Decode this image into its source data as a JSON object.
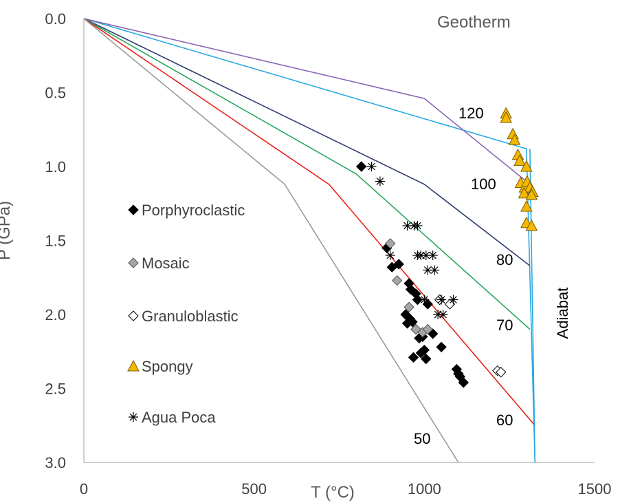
{
  "chart_data": {
    "type": "scatter",
    "title": "Geotherm",
    "xlabel": "T (°C)",
    "ylabel": "P (GPa)",
    "xlim": [
      0,
      1500
    ],
    "ylim": [
      0,
      3.0
    ],
    "y_inverted": true,
    "x_ticks": [
      "0",
      "500",
      "1000",
      "1500"
    ],
    "y_ticks": [
      "0.0",
      "0.5",
      "1.0",
      "1.5",
      "2.0",
      "2.5",
      "3.0"
    ],
    "grid": false,
    "legend_position": "left",
    "lines": [
      {
        "label": "120",
        "color": "#29a9e0",
        "points": [
          [
            0,
            0
          ],
          [
            1300,
            0.88
          ],
          [
            1325,
            3.0
          ]
        ]
      },
      {
        "label": "100",
        "color": "#8a64b4",
        "points": [
          [
            0,
            0
          ],
          [
            1000,
            0.54
          ],
          [
            1310,
            1.12
          ]
        ]
      },
      {
        "label": "80",
        "color": "#2e3f6e",
        "points": [
          [
            0,
            0
          ],
          [
            1000,
            1.12
          ],
          [
            1310,
            1.67
          ]
        ]
      },
      {
        "label": "70",
        "color": "#27a85e",
        "points": [
          [
            0,
            0
          ],
          [
            800,
            1.05
          ],
          [
            1310,
            2.1
          ]
        ]
      },
      {
        "label": "60",
        "color": "#e8231b",
        "points": [
          [
            0,
            0
          ],
          [
            720,
            1.12
          ],
          [
            1325,
            2.75
          ]
        ]
      },
      {
        "label": "50",
        "color": "#9a9a9a",
        "points": [
          [
            0,
            0
          ],
          [
            590,
            1.12
          ],
          [
            1100,
            3.0
          ]
        ]
      },
      {
        "label": "Adiabat",
        "color": "#29a9e0",
        "points": [
          [
            1310,
            0.88
          ],
          [
            1325,
            3.0
          ]
        ]
      }
    ],
    "series": [
      {
        "name": "Porphyroclastic",
        "marker": "diamond",
        "fill": "#000000",
        "stroke": "#000000",
        "points": [
          [
            815,
            1.0
          ],
          [
            890,
            1.55
          ],
          [
            905,
            1.68
          ],
          [
            925,
            1.66
          ],
          [
            955,
            1.79
          ],
          [
            960,
            1.83
          ],
          [
            975,
            1.86
          ],
          [
            980,
            1.9
          ],
          [
            945,
            2.0
          ],
          [
            950,
            2.06
          ],
          [
            958,
            2.03
          ],
          [
            965,
            2.05
          ],
          [
            975,
            2.1
          ],
          [
            985,
            2.16
          ],
          [
            995,
            2.15
          ],
          [
            1010,
            1.93
          ],
          [
            1025,
            2.13
          ],
          [
            1050,
            2.22
          ],
          [
            968,
            2.29
          ],
          [
            990,
            2.26
          ],
          [
            1000,
            2.24
          ],
          [
            1005,
            2.3
          ],
          [
            1095,
            2.37
          ],
          [
            1100,
            2.4
          ],
          [
            1105,
            2.42
          ],
          [
            1115,
            2.46
          ]
        ]
      },
      {
        "name": "Mosaic",
        "marker": "diamond",
        "fill": "#a6a6a6",
        "stroke": "#555555",
        "points": [
          [
            900,
            1.52
          ],
          [
            920,
            1.77
          ],
          [
            955,
            1.95
          ],
          [
            975,
            2.1
          ],
          [
            995,
            2.12
          ],
          [
            1010,
            2.1
          ]
        ]
      },
      {
        "name": "Granuloblastic",
        "marker": "diamond",
        "fill": "#ffffff",
        "stroke": "#000000",
        "points": [
          [
            1045,
            1.9
          ],
          [
            1075,
            1.93
          ],
          [
            1215,
            2.38
          ],
          [
            1225,
            2.39
          ]
        ]
      },
      {
        "name": "Spongy",
        "marker": "triangle",
        "fill": "#f5b800",
        "stroke": "#7a5c00",
        "points": [
          [
            1240,
            0.64
          ],
          [
            1240,
            0.67
          ],
          [
            1260,
            0.78
          ],
          [
            1265,
            0.82
          ],
          [
            1275,
            0.92
          ],
          [
            1280,
            0.96
          ],
          [
            1300,
            1.0
          ],
          [
            1283,
            1.11
          ],
          [
            1295,
            1.14
          ],
          [
            1302,
            1.1
          ],
          [
            1310,
            1.14
          ],
          [
            1318,
            1.17
          ],
          [
            1293,
            1.18
          ],
          [
            1315,
            1.19
          ],
          [
            1300,
            1.27
          ],
          [
            1300,
            1.38
          ],
          [
            1315,
            1.4
          ]
        ]
      },
      {
        "name": "Agua Poca",
        "marker": "asterisk",
        "fill": "none",
        "stroke": "#000000",
        "points": [
          [
            845,
            1.0
          ],
          [
            870,
            1.1
          ],
          [
            950,
            1.4
          ],
          [
            970,
            1.4
          ],
          [
            980,
            1.4
          ],
          [
            900,
            1.6
          ],
          [
            980,
            1.6
          ],
          [
            990,
            1.6
          ],
          [
            1005,
            1.6
          ],
          [
            1025,
            1.6
          ],
          [
            1010,
            1.7
          ],
          [
            1030,
            1.7
          ],
          [
            1000,
            1.9
          ],
          [
            1050,
            1.9
          ],
          [
            1085,
            1.9
          ],
          [
            1040,
            2.0
          ],
          [
            1055,
            2.0
          ]
        ]
      }
    ]
  }
}
